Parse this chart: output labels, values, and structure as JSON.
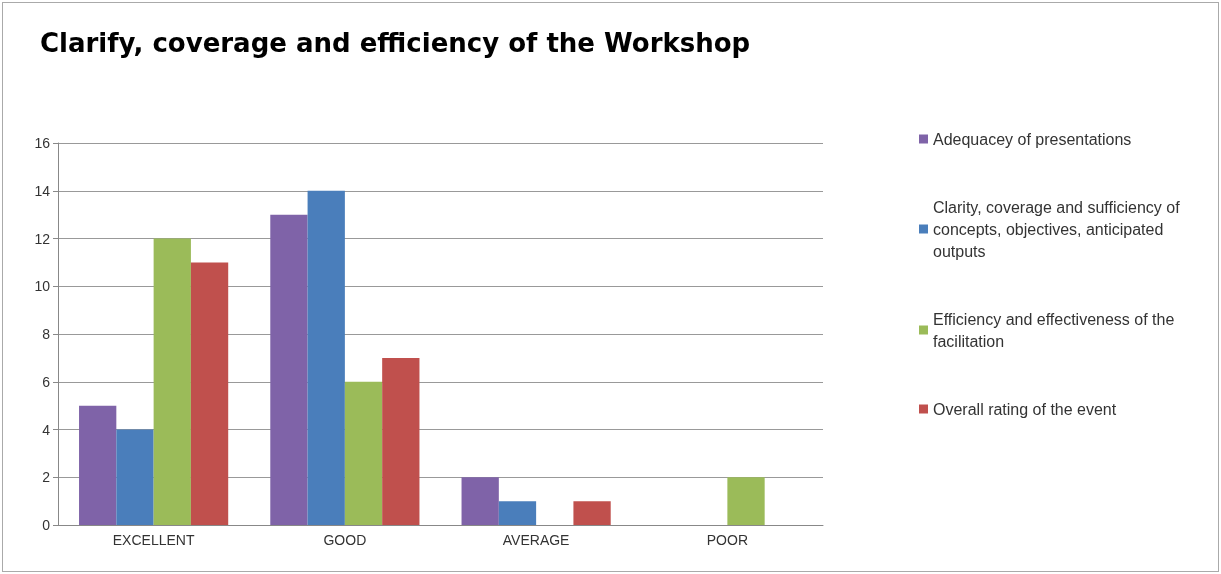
{
  "chart_data": {
    "type": "bar",
    "title": "Clarify, coverage and efficiency of the Workshop",
    "categories": [
      "EXCELLENT",
      "GOOD",
      "AVERAGE",
      "POOR"
    ],
    "series": [
      {
        "name": "Adequacey of presentations",
        "color": "#7f63a8",
        "values": [
          5,
          13,
          2,
          0
        ]
      },
      {
        "name": "Clarity, coverage and sufficiency of concepts, objectives, anticipated outputs",
        "color": "#4a7ebb",
        "values": [
          4,
          14,
          1,
          0
        ]
      },
      {
        "name": "Efficiency and effectiveness of the facilitation",
        "color": "#9bbb59",
        "values": [
          12,
          6,
          0,
          2
        ]
      },
      {
        "name": "Overall rating of the event",
        "color": "#c0504d",
        "values": [
          11,
          7,
          1,
          0
        ]
      }
    ],
    "ylim": [
      0,
      16
    ],
    "yticks": [
      0,
      2,
      4,
      6,
      8,
      10,
      12,
      14,
      16
    ],
    "grid": "y",
    "legend": "right"
  }
}
